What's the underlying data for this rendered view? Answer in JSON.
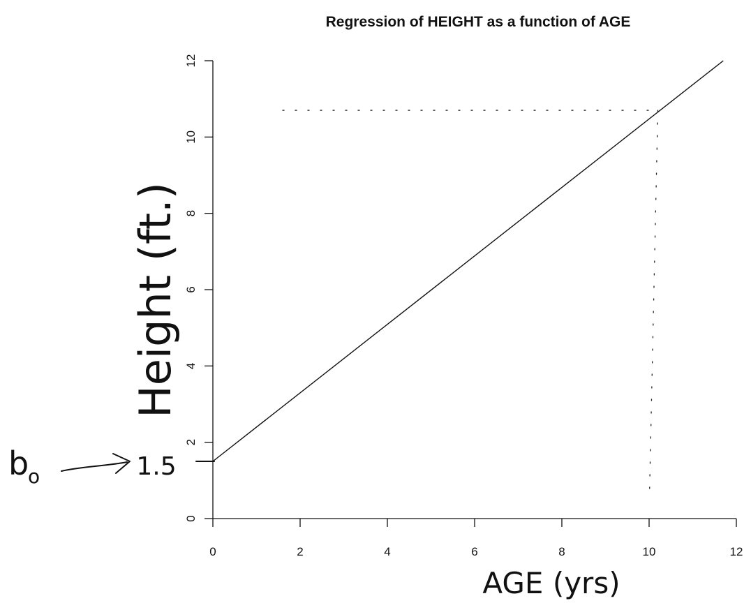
{
  "chart_data": {
    "type": "line",
    "title": "Regression of HEIGHT as a function of AGE",
    "xlabel": "AGE (yrs)",
    "ylabel": "Height (ft.)",
    "xlim": [
      0,
      12
    ],
    "ylim": [
      0,
      12
    ],
    "x_ticks": [
      "0",
      "2",
      "4",
      "6",
      "8",
      "10",
      "12"
    ],
    "y_ticks": [
      "0",
      "2",
      "4",
      "6",
      "8",
      "10",
      "12"
    ],
    "grid": false,
    "series": [
      {
        "x": [
          0,
          11.7
        ],
        "y": [
          1.5,
          12
        ]
      }
    ],
    "annotations": {
      "intercept_symbol": "b",
      "intercept_subscript": "o",
      "intercept_value": "1.5",
      "guide_point": {
        "x": 10.2,
        "y": 10.7
      }
    }
  }
}
